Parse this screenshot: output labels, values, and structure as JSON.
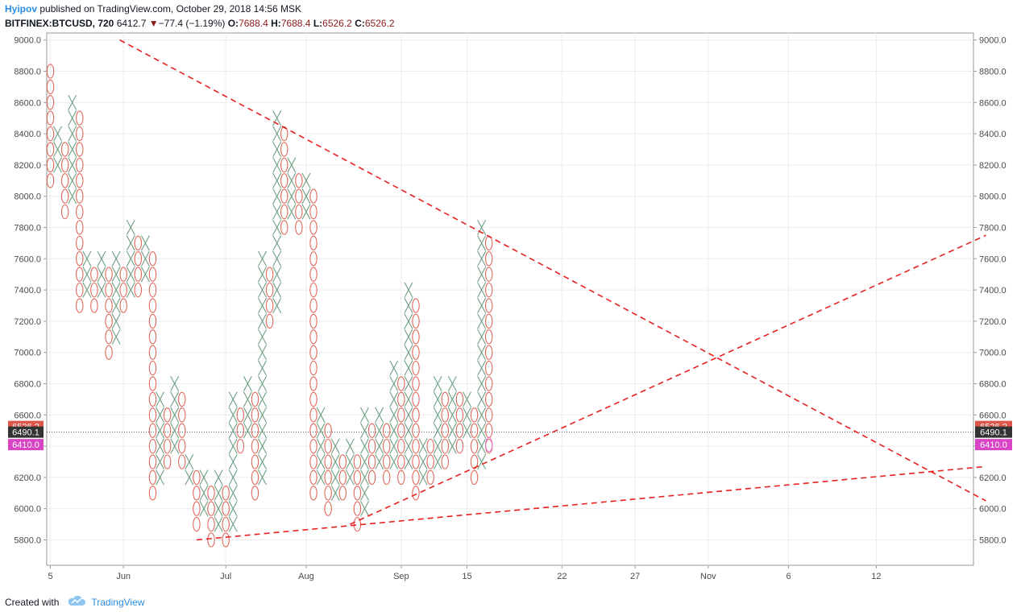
{
  "header": {
    "author": "Hyipov",
    "published": "published on TradingView.com, October 29, 2018 14:56 MSK",
    "symbol": "BITFINEX:BTCUSD, 720",
    "price": "6412.7",
    "arrow": "▼",
    "change": "−77.4 (−1.19%)",
    "o_label": "O:",
    "o_value": "7688.4",
    "h_label": "H:",
    "h_value": "7688.4",
    "l_label": "L:",
    "l_value": "6526.2",
    "c_label": "C:",
    "c_value": "6526.2"
  },
  "footer": {
    "created_with": "Created with",
    "brand": "TradingView",
    "logo_icon": "tradingview-cloud-icon"
  },
  "colors": {
    "x_color": "#6b9e82",
    "o_color": "#e0675a",
    "trend_color": "#e8201f",
    "grid_color": "#ececec",
    "badge_red": "#e0564a",
    "badge_dark": "#333333",
    "badge_magenta": "#d944c4"
  },
  "chart_data": {
    "type": "point-and-figure",
    "ylim": [
      5700,
      9050
    ],
    "y_ticks": [
      5800,
      6000,
      6200,
      6400,
      6600,
      6800,
      7000,
      7200,
      7400,
      7600,
      7800,
      8000,
      8200,
      8400,
      8600,
      8800,
      9000
    ],
    "y_tick_labels": [
      "5800.0",
      "6000.0",
      "6200.0",
      "6400.0",
      "6600.0",
      "6800.0",
      "7000.0",
      "7200.0",
      "7400.0",
      "7600.0",
      "7800.0",
      "8000.0",
      "8200.0",
      "8400.0",
      "8600.0",
      "8800.0",
      "9000.0"
    ],
    "x_tick_labels": [
      "5",
      "Jun",
      "Jul",
      "Aug",
      "Sep",
      "15",
      "22",
      "27",
      "Nov",
      "6",
      "12"
    ],
    "x_tick_columns": [
      0,
      10,
      24,
      35,
      48,
      57,
      70,
      80,
      90,
      101,
      113
    ],
    "box_size": 100,
    "columns": [
      {
        "type": "O",
        "low": 8100,
        "high": 8800
      },
      {
        "type": "X",
        "low": 8200,
        "high": 8400
      },
      {
        "type": "O",
        "low": 7900,
        "high": 8300
      },
      {
        "type": "X",
        "low": 8000,
        "high": 8600
      },
      {
        "type": "O",
        "low": 7300,
        "high": 8500
      },
      {
        "type": "X",
        "low": 7400,
        "high": 7600
      },
      {
        "type": "O",
        "low": 7300,
        "high": 7500
      },
      {
        "type": "X",
        "low": 7400,
        "high": 7600
      },
      {
        "type": "O",
        "low": 7000,
        "high": 7500
      },
      {
        "type": "X",
        "low": 7100,
        "high": 7600
      },
      {
        "type": "O",
        "low": 7300,
        "high": 7500
      },
      {
        "type": "X",
        "low": 7400,
        "high": 7800
      },
      {
        "type": "O",
        "low": 7400,
        "high": 7700
      },
      {
        "type": "X",
        "low": 7500,
        "high": 7700
      },
      {
        "type": "O",
        "low": 6100,
        "high": 7600
      },
      {
        "type": "X",
        "low": 6200,
        "high": 6700
      },
      {
        "type": "O",
        "low": 6300,
        "high": 6600
      },
      {
        "type": "X",
        "low": 6400,
        "high": 6800
      },
      {
        "type": "O",
        "low": 6300,
        "high": 6700
      },
      {
        "type": "X",
        "low": 6200,
        "high": 6300
      },
      {
        "type": "O",
        "low": 5900,
        "high": 6200
      },
      {
        "type": "X",
        "low": 6000,
        "high": 6200
      },
      {
        "type": "O",
        "low": 5800,
        "high": 6100
      },
      {
        "type": "X",
        "low": 5900,
        "high": 6200
      },
      {
        "type": "O",
        "low": 5800,
        "high": 6100
      },
      {
        "type": "X",
        "low": 5900,
        "high": 6700
      },
      {
        "type": "O",
        "low": 6400,
        "high": 6600
      },
      {
        "type": "X",
        "low": 6500,
        "high": 6800
      },
      {
        "type": "O",
        "low": 6100,
        "high": 6700
      },
      {
        "type": "X",
        "low": 6200,
        "high": 7600
      },
      {
        "type": "O",
        "low": 7200,
        "high": 7500
      },
      {
        "type": "X",
        "low": 7300,
        "high": 8500
      },
      {
        "type": "O",
        "low": 7800,
        "high": 8400
      },
      {
        "type": "X",
        "low": 7900,
        "high": 8200
      },
      {
        "type": "O",
        "low": 7800,
        "high": 8100
      },
      {
        "type": "X",
        "low": 7900,
        "high": 8100
      },
      {
        "type": "O",
        "low": 6100,
        "high": 8000
      },
      {
        "type": "X",
        "low": 6200,
        "high": 6600
      },
      {
        "type": "O",
        "low": 6000,
        "high": 6500
      },
      {
        "type": "X",
        "low": 6100,
        "high": 6400
      },
      {
        "type": "O",
        "low": 6100,
        "high": 6300
      },
      {
        "type": "X",
        "low": 6200,
        "high": 6400
      },
      {
        "type": "O",
        "low": 5900,
        "high": 6300
      },
      {
        "type": "X",
        "low": 6000,
        "high": 6600
      },
      {
        "type": "O",
        "low": 6200,
        "high": 6500
      },
      {
        "type": "X",
        "low": 6300,
        "high": 6600
      },
      {
        "type": "O",
        "low": 6200,
        "high": 6500
      },
      {
        "type": "X",
        "low": 6300,
        "high": 6900
      },
      {
        "type": "O",
        "low": 6200,
        "high": 6800
      },
      {
        "type": "X",
        "low": 6300,
        "high": 7400
      },
      {
        "type": "O",
        "low": 6100,
        "high": 7300
      },
      {
        "type": "X",
        "low": 6200,
        "high": 6400
      },
      {
        "type": "O",
        "low": 6200,
        "high": 6400
      },
      {
        "type": "X",
        "low": 6300,
        "high": 6800
      },
      {
        "type": "O",
        "low": 6300,
        "high": 6700
      },
      {
        "type": "X",
        "low": 6400,
        "high": 6800
      },
      {
        "type": "O",
        "low": 6400,
        "high": 6700
      },
      {
        "type": "X",
        "low": 6500,
        "high": 6700
      },
      {
        "type": "O",
        "low": 6200,
        "high": 6600
      },
      {
        "type": "X",
        "low": 6300,
        "high": 7800
      },
      {
        "type": "O",
        "low": 6400,
        "high": 7700
      }
    ],
    "trendlines": [
      {
        "from": [
          9.5,
          9000
        ],
        "to": [
          128,
          6050
        ]
      },
      {
        "from": [
          20,
          5800
        ],
        "to": [
          128,
          6270
        ]
      },
      {
        "from": [
          41,
          5900
        ],
        "to": [
          128,
          7750
        ]
      }
    ],
    "price_badges": [
      {
        "value": 6526.2,
        "label": "6526.2",
        "color": "#e0564a"
      },
      {
        "value": 6490.1,
        "label": "6490.1",
        "color": "#333333"
      },
      {
        "value": 6410.0,
        "label": "6410.0",
        "color": "#d944c4"
      }
    ],
    "current_line_value": 6490.1
  }
}
